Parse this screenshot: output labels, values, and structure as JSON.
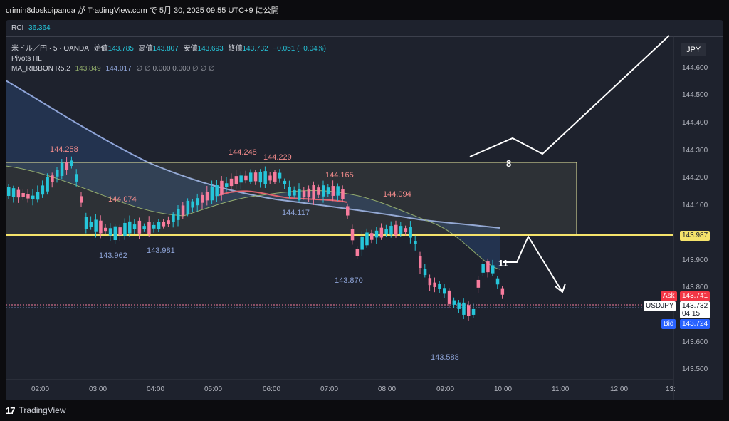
{
  "header": {
    "text": "crimin8doskoipanda が TradingView.com で 5月 30, 2025 09:55 UTC+9 に公開"
  },
  "rci": {
    "label": "RCI",
    "value": "36.364"
  },
  "symbol": {
    "title": "米ドル／円 · 5 · OANDA",
    "open_label": "始値",
    "open": "143.785",
    "high_label": "高値",
    "high": "143.807",
    "low_label": "安値",
    "low": "143.693",
    "close_label": "終値",
    "close": "143.732",
    "change": "−0.051 (−0.04%)"
  },
  "indicators": {
    "pivots": "Pivots HL",
    "ma_ribbon": {
      "name": "MA_RIBBON R5.2",
      "v1": "143.849",
      "v2": "144.017",
      "rest": "∅ ∅ 0.000 0.000 ∅ ∅ ∅"
    }
  },
  "currency": "JPY",
  "price_axis": [
    "144.600",
    "144.500",
    "144.400",
    "144.300",
    "144.200",
    "144.100",
    "143.900",
    "143.800",
    "143.600",
    "143.500"
  ],
  "time_axis": [
    "02:00",
    "03:00",
    "04:00",
    "05:00",
    "06:00",
    "07:00",
    "08:00",
    "09:00",
    "10:00",
    "11:00",
    "12:00",
    "13:"
  ],
  "tags": {
    "level": "143.987",
    "ask_label": "Ask",
    "ask": "143.741",
    "symbol_label": "USDJPY",
    "last": "143.732",
    "countdown": "04:15",
    "bid_label": "Bid",
    "bid": "143.724"
  },
  "pivots_high": [
    "144.258",
    "144.248",
    "144.229",
    "144.165",
    "144.094",
    "144.074"
  ],
  "pivots_low": [
    "143.962",
    "143.981",
    "144.117",
    "143.870",
    "143.588"
  ],
  "annotations": {
    "wave_top": "8",
    "wave_bottom": "11"
  },
  "colors": {
    "bull": "#f77c9d",
    "bear": "#26c6da",
    "ask": "#f23645",
    "bid": "#2962ff",
    "box_border": "#e8e6a0",
    "ma_fast": "#e05a6a",
    "ma_slow": "#8ea4d8"
  },
  "footer": {
    "brand": "TradingView"
  }
}
